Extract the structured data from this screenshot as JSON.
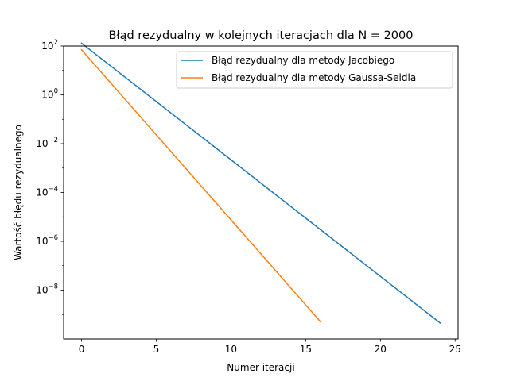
{
  "chart_data": {
    "type": "line",
    "title": "Błąd rezydualny w kolejnych iteracjach dla N = 2000",
    "xlabel": "Numer iteracji",
    "ylabel": "Wartość błędu rezydualnego",
    "xlim": [
      -1.2,
      25.2
    ],
    "ylim": [
      1e-10,
      100.0
    ],
    "yscale": "log",
    "grid": false,
    "legend_position": "top-right",
    "x_ticks": [
      {
        "value": 0,
        "label": "0"
      },
      {
        "value": 5,
        "label": "5"
      },
      {
        "value": 10,
        "label": "10"
      },
      {
        "value": 15,
        "label": "15"
      },
      {
        "value": 20,
        "label": "20"
      },
      {
        "value": 25,
        "label": "25"
      }
    ],
    "y_ticks": [
      {
        "value": 100.0,
        "base": "10",
        "exp": "2"
      },
      {
        "value": 1.0,
        "base": "10",
        "exp": "0"
      },
      {
        "value": 0.01,
        "base": "10",
        "exp": "−2"
      },
      {
        "value": 0.0001,
        "base": "10",
        "exp": "−4"
      },
      {
        "value": 1e-06,
        "base": "10",
        "exp": "−6"
      },
      {
        "value": 1e-08,
        "base": "10",
        "exp": "−8"
      }
    ],
    "series": [
      {
        "name": "Błąd rezydualny dla metody Jacobiego",
        "color": "#1f77b4",
        "x": [
          0,
          24
        ],
        "y": [
          130,
          4.5e-10
        ]
      },
      {
        "name": "Błąd rezydualny dla metody Gaussa-Seidla",
        "color": "#ff7f0e",
        "x": [
          0,
          16
        ],
        "y": [
          70,
          5e-10
        ]
      }
    ]
  }
}
